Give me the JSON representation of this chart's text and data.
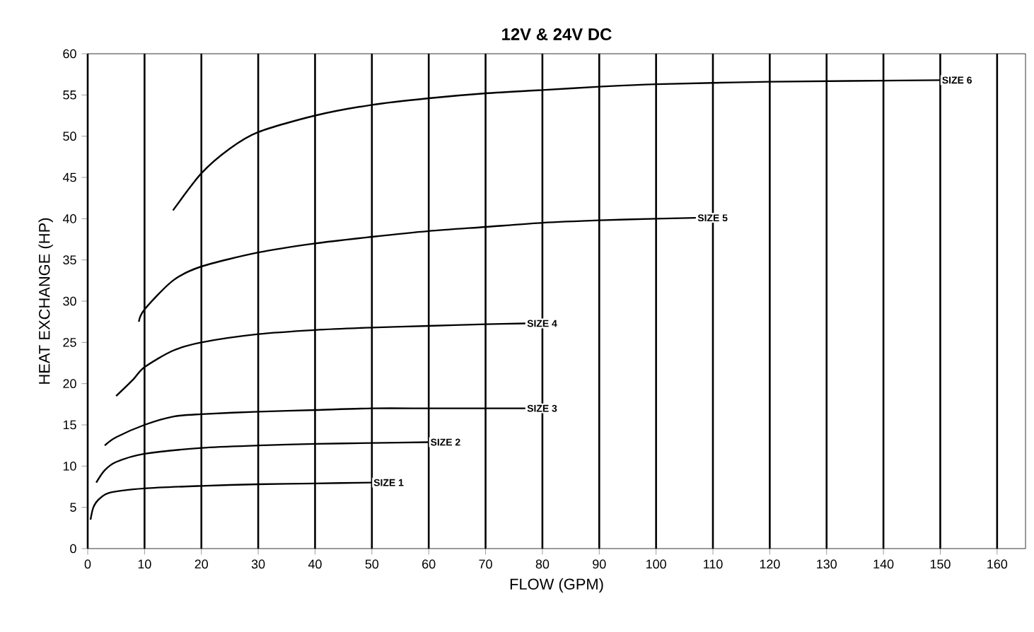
{
  "chart_data": {
    "type": "line",
    "title": "12V & 24V DC",
    "xlabel": "FLOW (GPM)",
    "ylabel": "HEAT EXCHANGE (HP)",
    "xlim": [
      0,
      165
    ],
    "xticks": [
      0,
      10,
      20,
      30,
      40,
      50,
      60,
      70,
      80,
      90,
      100,
      110,
      120,
      130,
      140,
      150,
      160
    ],
    "ylim": [
      0,
      60
    ],
    "yticks": [
      0,
      5,
      10,
      15,
      20,
      25,
      30,
      35,
      40,
      45,
      50,
      55,
      60
    ],
    "grid": "x",
    "legend": false,
    "marker": "none",
    "line_style": "solid",
    "series": [
      {
        "name": "SIZE 1",
        "color": "#000000",
        "x": [
          0.5,
          1,
          2,
          4,
          10,
          20,
          30,
          40,
          50
        ],
        "values": [
          3.5,
          5,
          6,
          6.8,
          7.3,
          7.6,
          7.8,
          7.9,
          8
        ]
      },
      {
        "name": "SIZE 2",
        "color": "#000000",
        "x": [
          1.5,
          3,
          5,
          10,
          20,
          30,
          40,
          50,
          60
        ],
        "values": [
          8,
          9.5,
          10.5,
          11.5,
          12.2,
          12.5,
          12.7,
          12.8,
          12.9
        ]
      },
      {
        "name": "SIZE 3",
        "color": "#000000",
        "x": [
          3,
          5,
          10,
          15,
          20,
          30,
          40,
          50,
          60,
          70,
          77
        ],
        "values": [
          12.5,
          13.5,
          15,
          16,
          16.3,
          16.6,
          16.8,
          17,
          17,
          17,
          17
        ]
      },
      {
        "name": "SIZE 4",
        "color": "#000000",
        "x": [
          5,
          8,
          10,
          15,
          20,
          30,
          40,
          50,
          60,
          70,
          77
        ],
        "values": [
          18.5,
          20.5,
          22,
          24,
          25,
          26,
          26.5,
          26.8,
          27,
          27.2,
          27.3
        ]
      },
      {
        "name": "SIZE 5",
        "color": "#000000",
        "x": [
          9,
          10,
          15,
          20,
          30,
          40,
          50,
          60,
          70,
          80,
          90,
          100,
          107
        ],
        "values": [
          27.5,
          29,
          32.5,
          34.2,
          35.9,
          37,
          37.8,
          38.5,
          39,
          39.5,
          39.8,
          40,
          40.1
        ]
      },
      {
        "name": "SIZE 6",
        "color": "#000000",
        "x": [
          15,
          20,
          25,
          30,
          40,
          50,
          60,
          70,
          80,
          90,
          100,
          120,
          150
        ],
        "values": [
          41,
          45.5,
          48.5,
          50.5,
          52.5,
          53.8,
          54.6,
          55.2,
          55.6,
          56,
          56.3,
          56.6,
          56.8
        ]
      }
    ]
  }
}
